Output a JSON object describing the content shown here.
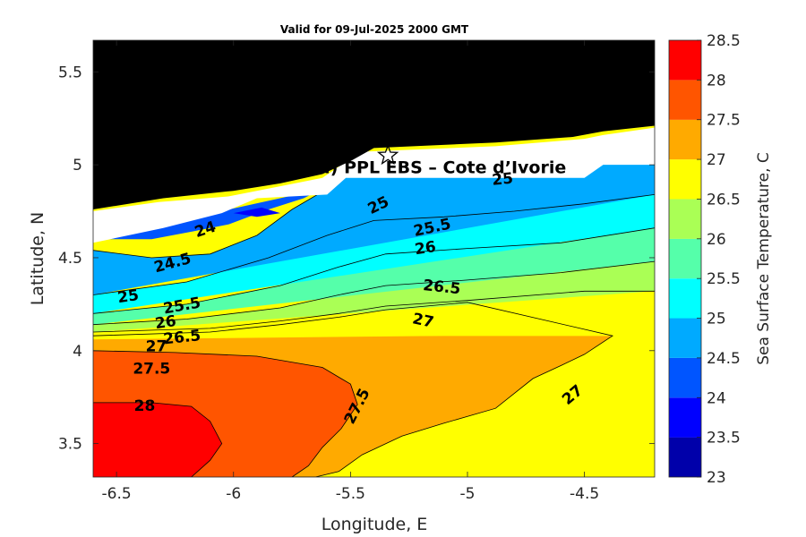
{
  "chart_data": {
    "type": "contour",
    "title": "Valid for 09-Jul-2025 2000 GMT",
    "xlabel": "Longitude, E",
    "ylabel": "Latitude, N",
    "xlim": [
      -6.6,
      -4.2
    ],
    "ylim": [
      3.32,
      5.67
    ],
    "xticks": [
      "-6.5",
      "-6",
      "-5.5",
      "-5",
      "-4.5"
    ],
    "xtick_values": [
      -6.5,
      -6,
      -5.5,
      -5,
      -4.5
    ],
    "yticks": [
      "3.5",
      "4",
      "4.5",
      "5",
      "5.5"
    ],
    "ytick_values": [
      3.5,
      4,
      4.5,
      5,
      5.5
    ],
    "colorbar": {
      "label": "Sea Surface Temperature, C",
      "ticks": [
        "23",
        "23.5",
        "24",
        "24.5",
        "25",
        "25.5",
        "26",
        "26.5",
        "27",
        "27.5",
        "28",
        "28.5"
      ],
      "levels": [
        23,
        23.5,
        24,
        24.5,
        25,
        25.5,
        26,
        26.5,
        27,
        27.5,
        28,
        28.5
      ],
      "colors": [
        "#0000aa",
        "#0000ff",
        "#0055ff",
        "#00aaff",
        "#00ffff",
        "#55ffaa",
        "#aaff55",
        "#ffff00",
        "#ffaa00",
        "#ff5500",
        "#ff0000"
      ]
    },
    "land_color": "#000000",
    "site": {
      "label": "A (ONHYM) PPL EBS  – Cote d’Ivorie",
      "lon": -5.34,
      "lat": 5.05,
      "marker": "star"
    },
    "contour_labels": [
      {
        "text": "24",
        "lon": -6.12,
        "lat": 4.65,
        "angle": -18
      },
      {
        "text": "24.5",
        "lon": -6.26,
        "lat": 4.47,
        "angle": -15
      },
      {
        "text": "25",
        "lon": -6.45,
        "lat": 4.29,
        "angle": -8
      },
      {
        "text": "25",
        "lon": -5.38,
        "lat": 4.78,
        "angle": -26
      },
      {
        "text": "25",
        "lon": -4.85,
        "lat": 4.92,
        "angle": -5
      },
      {
        "text": "25.5",
        "lon": -6.22,
        "lat": 4.24,
        "angle": -10
      },
      {
        "text": "25.5",
        "lon": -5.15,
        "lat": 4.66,
        "angle": -12
      },
      {
        "text": "26",
        "lon": -6.29,
        "lat": 4.15,
        "angle": -8
      },
      {
        "text": "26",
        "lon": -5.18,
        "lat": 4.55,
        "angle": -8
      },
      {
        "text": "26.5",
        "lon": -6.22,
        "lat": 4.07,
        "angle": -6
      },
      {
        "text": "26.5",
        "lon": -5.11,
        "lat": 4.34,
        "angle": 6
      },
      {
        "text": "27",
        "lon": -6.33,
        "lat": 4.02,
        "angle": 0
      },
      {
        "text": "27",
        "lon": -5.19,
        "lat": 4.16,
        "angle": 12
      },
      {
        "text": "27",
        "lon": -4.55,
        "lat": 3.76,
        "angle": -40
      },
      {
        "text": "27.5",
        "lon": -6.35,
        "lat": 3.9,
        "angle": 0
      },
      {
        "text": "27.5",
        "lon": -5.47,
        "lat": 3.7,
        "angle": -63
      },
      {
        "text": "28",
        "lon": -6.38,
        "lat": 3.7,
        "angle": 0
      }
    ],
    "regions": [
      {
        "name": "region-27-27.5",
        "level": 27,
        "lon": [
          -6.6,
          -5.1,
          -4.38,
          -4.5,
          -4.6,
          -4.72,
          -4.88,
          -5.1,
          -5.28,
          -5.45,
          -5.55,
          -5.65,
          -5.75,
          -6.6
        ],
        "lat": [
          4.06,
          4.08,
          4.08,
          3.98,
          3.92,
          3.85,
          3.69,
          3.61,
          3.54,
          3.44,
          3.35,
          3.32,
          3.32,
          3.32
        ]
      },
      {
        "name": "region-27.5-28",
        "level": 27.5,
        "lon": [
          -6.6,
          -6.25,
          -5.9,
          -5.62,
          -5.5,
          -5.47,
          -5.54,
          -5.62,
          -5.68,
          -5.75,
          -6.6
        ],
        "lat": [
          4.0,
          3.99,
          3.97,
          3.91,
          3.82,
          3.71,
          3.58,
          3.48,
          3.38,
          3.32,
          3.32
        ]
      },
      {
        "name": "region-28-28.5",
        "level": 28,
        "lon": [
          -6.6,
          -6.35,
          -6.18,
          -6.1,
          -6.05,
          -6.1,
          -6.18,
          -6.6
        ],
        "lat": [
          3.72,
          3.72,
          3.7,
          3.62,
          3.5,
          3.41,
          3.32,
          3.32
        ]
      },
      {
        "name": "region-26.5-27",
        "level": 26.5,
        "lon": [
          -6.6,
          -6.1,
          -5.8,
          -5.55,
          -5.35,
          -5.0,
          -4.5,
          -4.2,
          -4.2,
          -6.6
        ],
        "lat": [
          4.1,
          4.12,
          4.16,
          4.2,
          4.24,
          4.27,
          4.32,
          4.32,
          4.08,
          4.08
        ]
      },
      {
        "name": "region-26-26.5",
        "level": 26,
        "lon": [
          -6.6,
          -6.2,
          -5.8,
          -5.55,
          -5.35,
          -5.0,
          -4.6,
          -4.2,
          -4.2,
          -6.6
        ],
        "lat": [
          4.14,
          4.17,
          4.23,
          4.3,
          4.35,
          4.38,
          4.42,
          4.48,
          4.32,
          4.1
        ]
      },
      {
        "name": "region-25.5-26",
        "level": 25.5,
        "lon": [
          -6.6,
          -6.2,
          -5.8,
          -5.55,
          -5.35,
          -5.0,
          -4.6,
          -4.2,
          -4.2,
          -6.6
        ],
        "lat": [
          4.2,
          4.25,
          4.35,
          4.45,
          4.52,
          4.55,
          4.58,
          4.66,
          4.48,
          4.14
        ]
      },
      {
        "name": "region-25-25.5",
        "level": 25,
        "lon": [
          -6.6,
          -6.2,
          -5.85,
          -5.6,
          -5.4,
          -5.1,
          -4.8,
          -4.5,
          -4.2,
          -4.2,
          -6.6
        ],
        "lat": [
          4.3,
          4.37,
          4.5,
          4.62,
          4.7,
          4.72,
          4.75,
          4.79,
          4.84,
          4.66,
          4.2
        ]
      },
      {
        "name": "region-24.5-25",
        "level": 24.5,
        "lon": [
          -6.6,
          -6.35,
          -6.1,
          -5.9,
          -5.75,
          -5.6,
          -5.55,
          -4.95,
          -4.9,
          -4.2,
          -4.2,
          -6.6
        ],
        "lat": [
          4.54,
          4.5,
          4.52,
          4.62,
          4.76,
          4.87,
          4.96,
          4.97,
          5.07,
          5.07,
          4.84,
          4.3
        ]
      },
      {
        "name": "region-24-24.5",
        "level": 24,
        "lon": [
          -6.6,
          -6.35,
          -6.18,
          -6.02,
          -5.85,
          -5.7,
          -5.62,
          -6.6
        ],
        "lat": [
          4.6,
          4.6,
          4.64,
          4.68,
          4.76,
          4.82,
          4.87,
          4.6
        ]
      },
      {
        "name": "region-23.5-24",
        "level": 23.5,
        "lon": [
          -6.0,
          -5.88,
          -5.8,
          -5.9
        ],
        "lat": [
          4.74,
          4.77,
          4.74,
          4.72
        ]
      }
    ],
    "mask_region": {
      "lon": [
        -6.6,
        -6.32,
        -6.02,
        -5.82,
        -5.62,
        -5.55,
        -5.46,
        -4.88,
        -4.5,
        -4.42,
        -4.2,
        -4.2,
        -4.42,
        -4.5,
        -4.95,
        -5.3,
        -5.52,
        -5.6,
        -5.9,
        -6.05,
        -6.3,
        -6.6
      ],
      "lat": [
        4.75,
        4.8,
        4.83,
        4.88,
        4.93,
        4.99,
        5.07,
        5.1,
        5.14,
        5.16,
        5.2,
        5.0,
        5.0,
        4.93,
        4.93,
        4.93,
        4.93,
        4.84,
        4.82,
        4.74,
        4.66,
        4.58
      ]
    },
    "land_polygon": {
      "lon": [
        -6.6,
        -6.3,
        -6.0,
        -5.8,
        -5.62,
        -5.5,
        -5.4,
        -4.88,
        -4.55,
        -4.42,
        -4.2,
        -4.2,
        -6.6
      ],
      "lat": [
        4.76,
        4.82,
        4.86,
        4.9,
        4.95,
        5.02,
        5.09,
        5.12,
        5.15,
        5.18,
        5.21,
        5.67,
        5.67
      ]
    },
    "contours": [
      {
        "level": 27,
        "lon": [
          -6.6,
          -6.1,
          -5.8,
          -5.55,
          -5.35,
          -5.0,
          -4.38,
          -4.5,
          -4.6,
          -4.72,
          -4.88,
          -5.1,
          -5.28,
          -5.45,
          -5.55,
          -5.65,
          -5.75
        ],
        "lat": [
          4.08,
          4.1,
          4.14,
          4.18,
          4.22,
          4.26,
          4.08,
          3.98,
          3.92,
          3.85,
          3.69,
          3.61,
          3.54,
          3.44,
          3.35,
          3.32,
          3.32
        ]
      },
      {
        "level": 27.5,
        "lon": [
          -6.6,
          -6.25,
          -5.9,
          -5.62,
          -5.5,
          -5.47,
          -5.54,
          -5.62,
          -5.68,
          -5.75
        ],
        "lat": [
          4.0,
          3.99,
          3.97,
          3.91,
          3.82,
          3.71,
          3.58,
          3.48,
          3.38,
          3.32
        ]
      },
      {
        "level": 28,
        "lon": [
          -6.6,
          -6.35,
          -6.18,
          -6.1,
          -6.05,
          -6.1,
          -6.18
        ],
        "lat": [
          3.72,
          3.72,
          3.7,
          3.62,
          3.5,
          3.41,
          3.32
        ]
      },
      {
        "level": 26.5,
        "lon": [
          -6.6,
          -6.1,
          -5.8,
          -5.55,
          -5.35,
          -5.0,
          -4.5,
          -4.2
        ],
        "lat": [
          4.1,
          4.12,
          4.16,
          4.2,
          4.24,
          4.27,
          4.32,
          4.32
        ]
      },
      {
        "level": 26,
        "lon": [
          -6.6,
          -6.2,
          -5.8,
          -5.55,
          -5.35,
          -5.0,
          -4.6,
          -4.2
        ],
        "lat": [
          4.14,
          4.17,
          4.23,
          4.3,
          4.35,
          4.38,
          4.42,
          4.48
        ]
      },
      {
        "level": 25.5,
        "lon": [
          -6.6,
          -6.2,
          -5.8,
          -5.55,
          -5.35,
          -5.0,
          -4.6,
          -4.2
        ],
        "lat": [
          4.2,
          4.25,
          4.35,
          4.45,
          4.52,
          4.55,
          4.58,
          4.66
        ]
      },
      {
        "level": 25,
        "lon": [
          -6.6,
          -6.2,
          -5.85,
          -5.6,
          -5.4,
          -5.1,
          -4.8,
          -4.5,
          -4.2
        ],
        "lat": [
          4.3,
          4.37,
          4.5,
          4.62,
          4.7,
          4.72,
          4.75,
          4.79,
          4.84
        ]
      },
      {
        "level": 24.5,
        "lon": [
          -6.6,
          -6.35,
          -6.1,
          -5.9,
          -5.75,
          -5.6,
          -5.55
        ],
        "lat": [
          4.54,
          4.5,
          4.52,
          4.62,
          4.76,
          4.87,
          4.96
        ]
      }
    ]
  }
}
